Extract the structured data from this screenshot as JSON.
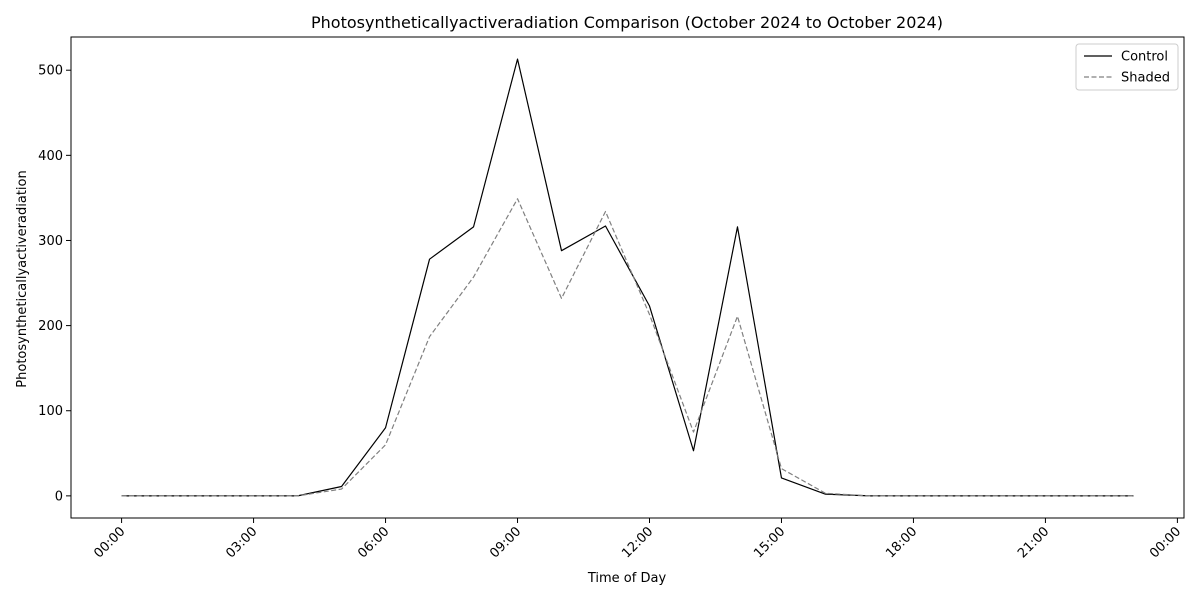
{
  "chart_data": {
    "type": "line",
    "title": "Photosyntheticallyactiveradiation Comparison (October 2024 to October 2024)",
    "xlabel": "Time of Day",
    "ylabel": "Photosyntheticallyactiveradiation",
    "x_ticks": [
      "00:00",
      "03:00",
      "06:00",
      "09:00",
      "12:00",
      "15:00",
      "18:00",
      "21:00",
      "00:00"
    ],
    "y_ticks": [
      0,
      100,
      200,
      300,
      400,
      500
    ],
    "x_hours": [
      0,
      1,
      2,
      3,
      4,
      5,
      6,
      7,
      8,
      9,
      10,
      11,
      12,
      13,
      14,
      15,
      16,
      17,
      18,
      19,
      20,
      21,
      22,
      23
    ],
    "xlim": [
      -1.15,
      24.15
    ],
    "ylim": [
      -26,
      539
    ],
    "grid": false,
    "legend_position": "top-right",
    "series": [
      {
        "name": "Control",
        "color": "#000000",
        "style": "solid",
        "values": [
          0,
          0,
          0,
          0,
          0,
          11,
          80,
          278,
          316,
          513,
          288,
          317,
          223,
          53,
          316,
          21,
          2,
          0,
          0,
          0,
          0,
          0,
          0,
          0
        ]
      },
      {
        "name": "Shaded",
        "color": "#808080",
        "style": "dashed",
        "values": [
          0,
          0,
          0,
          0,
          0,
          8,
          60,
          187,
          257,
          349,
          232,
          334,
          213,
          75,
          211,
          32,
          3,
          0,
          0,
          0,
          0,
          0,
          0,
          0
        ]
      }
    ]
  }
}
